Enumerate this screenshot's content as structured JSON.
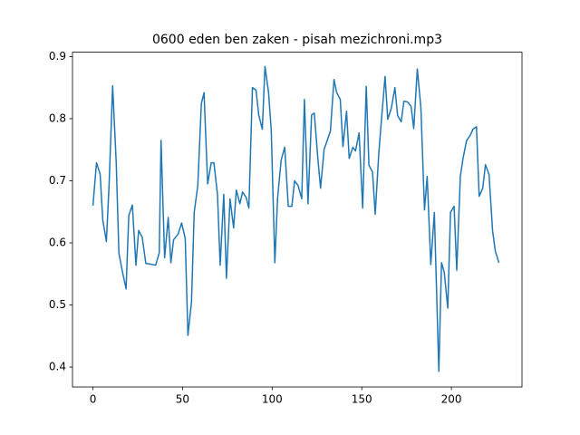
{
  "chart_data": {
    "type": "line",
    "title": "0600 eden ben zaken - pisah mezichroni.mp3",
    "x": [
      0,
      2,
      4,
      5.5,
      7.5,
      9,
      11,
      13,
      14.5,
      16.5,
      18.5,
      20,
      22,
      24,
      25.5,
      27.5,
      29.5,
      31.5,
      33.5,
      35,
      37,
      38,
      40,
      42,
      43.5,
      45,
      47.5,
      49.5,
      51.5,
      53,
      55,
      56.5,
      58.5,
      60.5,
      62,
      64,
      66,
      67.5,
      69.5,
      71,
      73,
      74.5,
      76.5,
      78.5,
      80,
      82,
      83.5,
      85.5,
      87,
      89,
      91,
      92.5,
      94.5,
      96,
      98,
      99.5,
      101.5,
      103,
      105,
      107,
      109,
      111,
      112.5,
      114.5,
      116.5,
      118,
      120,
      122,
      123.5,
      125.5,
      127,
      129,
      130.5,
      132.5,
      134.5,
      136,
      138,
      139.5,
      141.5,
      143,
      145,
      146.5,
      148.5,
      150.5,
      152.5,
      154,
      156,
      157.5,
      159.5,
      161,
      163,
      164.5,
      166.5,
      168.5,
      170,
      172,
      173.5,
      175.5,
      177.5,
      179,
      181,
      183,
      185,
      186.5,
      188.5,
      190.5,
      193,
      194.5,
      196,
      198,
      199.5,
      201.5,
      203,
      205,
      206.5,
      208.5,
      210.5,
      212,
      214,
      215.5,
      217.5,
      219,
      221,
      223,
      224.5,
      226.5
    ],
    "series": [
      {
        "color": "#1f77b4",
        "values": [
          0.66,
          0.729,
          0.711,
          0.637,
          0.602,
          0.692,
          0.853,
          0.729,
          0.583,
          0.553,
          0.526,
          0.644,
          0.661,
          0.564,
          0.62,
          0.609,
          0.567,
          0.566,
          0.565,
          0.564,
          0.584,
          0.765,
          0.576,
          0.641,
          0.568,
          0.605,
          0.614,
          0.632,
          0.607,
          0.451,
          0.505,
          0.649,
          0.692,
          0.824,
          0.842,
          0.695,
          0.729,
          0.729,
          0.678,
          0.564,
          0.678,
          0.543,
          0.671,
          0.624,
          0.685,
          0.663,
          0.682,
          0.673,
          0.656,
          0.85,
          0.846,
          0.806,
          0.783,
          0.884,
          0.842,
          0.781,
          0.568,
          0.671,
          0.733,
          0.754,
          0.659,
          0.659,
          0.7,
          0.692,
          0.671,
          0.831,
          0.663,
          0.806,
          0.809,
          0.736,
          0.688,
          0.751,
          0.763,
          0.78,
          0.863,
          0.842,
          0.831,
          0.755,
          0.812,
          0.736,
          0.754,
          0.748,
          0.777,
          0.656,
          0.852,
          0.725,
          0.714,
          0.646,
          0.744,
          0.799,
          0.868,
          0.799,
          0.817,
          0.85,
          0.805,
          0.795,
          0.828,
          0.827,
          0.82,
          0.784,
          0.88,
          0.817,
          0.653,
          0.707,
          0.565,
          0.649,
          0.393,
          0.568,
          0.553,
          0.495,
          0.649,
          0.659,
          0.556,
          0.707,
          0.736,
          0.765,
          0.773,
          0.783,
          0.787,
          0.675,
          0.688,
          0.726,
          0.71,
          0.619,
          0.587,
          0.568
        ]
      }
    ],
    "xlim": [
      -11.4,
      239.4
    ],
    "xticks": [
      0,
      50,
      100,
      150,
      200
    ],
    "ylim": [
      0.368,
      0.907
    ],
    "yticks": [
      0.4,
      0.5,
      0.6,
      0.7,
      0.8,
      0.9
    ]
  }
}
